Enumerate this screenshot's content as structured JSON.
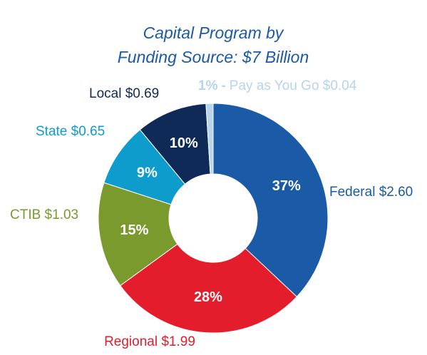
{
  "chart_data": {
    "type": "donut",
    "title": [
      "Capital Program by",
      "Funding Source: $7 Billion"
    ],
    "categories": [
      "Federal $2.60",
      "Regional $1.99",
      "CTIB $1.03",
      "State $0.65",
      "Local $0.69",
      "Pay as You Go $0.04"
    ],
    "values": [
      37,
      28,
      15,
      9,
      10,
      1
    ],
    "value_labels": [
      "37%",
      "28%",
      "15%",
      "9%",
      "10%",
      "1%"
    ],
    "label_separator": "-",
    "colors": [
      "#1a5aa6",
      "#e31d2b",
      "#7a9a2e",
      "#0e9ccc",
      "#0f2a56",
      "#b8d4ea"
    ]
  }
}
